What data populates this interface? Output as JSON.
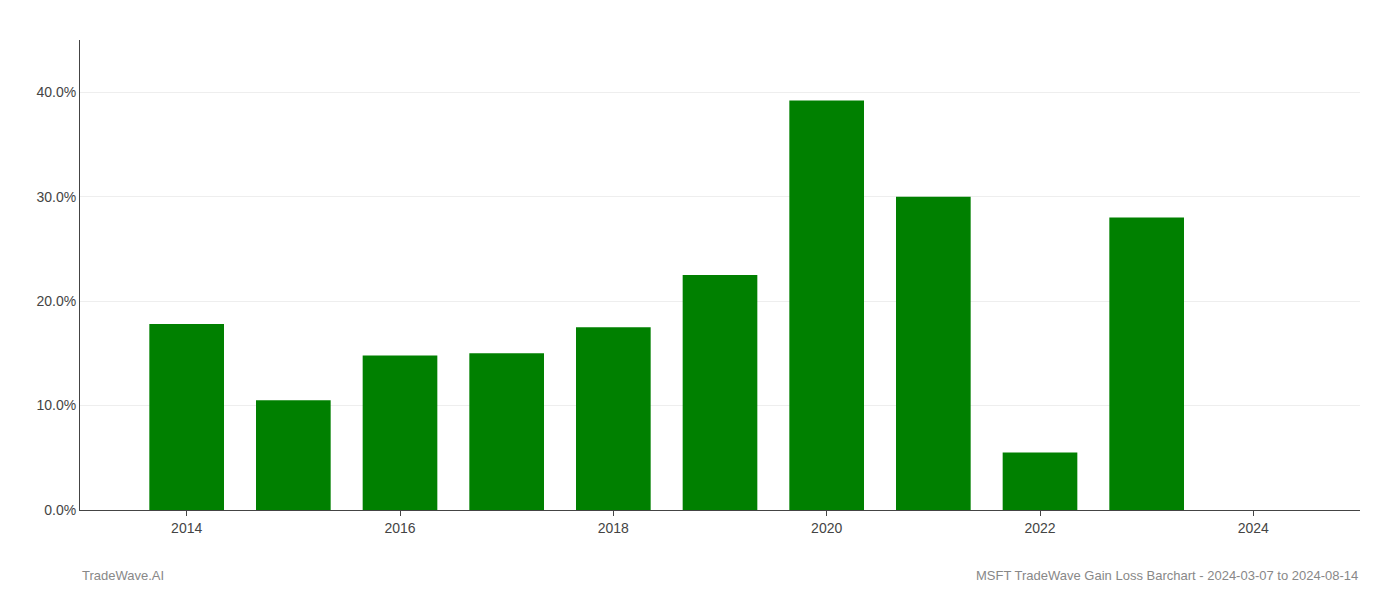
{
  "chart_data": {
    "type": "bar",
    "x": [
      2014,
      2015,
      2016,
      2017,
      2018,
      2019,
      2020,
      2021,
      2022,
      2023
    ],
    "values": [
      0.178,
      0.105,
      0.148,
      0.15,
      0.175,
      0.225,
      0.392,
      0.3,
      0.055,
      0.28
    ],
    "color": "#008000",
    "xlim": [
      2013.0,
      2025.0
    ],
    "xticks": [
      2014,
      2016,
      2018,
      2020,
      2022,
      2024
    ],
    "ylim": [
      0,
      0.45
    ],
    "yticks": [
      {
        "value": 0.0,
        "label": "0.0%"
      },
      {
        "value": 0.1,
        "label": "10.0%"
      },
      {
        "value": 0.2,
        "label": "20.0%"
      },
      {
        "value": 0.3,
        "label": "30.0%"
      },
      {
        "value": 0.4,
        "label": "40.0%"
      }
    ],
    "grid": true,
    "annotations": [
      "TradeWave.AI",
      "MSFT TradeWave Gain Loss Barchart - 2024-03-07 to 2024-08-14"
    ]
  }
}
